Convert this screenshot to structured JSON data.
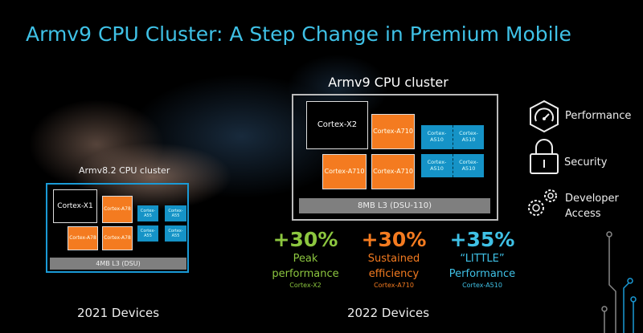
{
  "title": "Armv9 CPU Cluster: A Step Change in Premium Mobile",
  "armv9": {
    "label": "Armv9 CPU cluster",
    "big": "Cortex-X2",
    "mid": [
      "Cortex-A710",
      "Cortex-A710",
      "Cortex-A710"
    ],
    "little": [
      "Cortex-A510",
      "Cortex-A510",
      "Cortex-A510",
      "Cortex-A510"
    ],
    "cache": "8MB L3 (DSU-110)",
    "devices": "2022 Devices"
  },
  "armv82": {
    "label": "Armv8.2 CPU cluster",
    "big": "Cortex-X1",
    "mid": [
      "Cortex-A78",
      "Cortex-A78",
      "Cortex-A78"
    ],
    "little": [
      "Cortex-A55",
      "Cortex-A55",
      "Cortex-A55",
      "Cortex-A55"
    ],
    "cache": "4MB L3 (DSU)",
    "devices": "2021 Devices"
  },
  "stats": [
    {
      "value": "+30%",
      "line1": "Peak",
      "line2": "performance",
      "core": "Cortex-X2",
      "color": "#8cc63f"
    },
    {
      "value": "+30%",
      "line1": "Sustained",
      "line2": "efficiency",
      "core": "Cortex-A710",
      "color": "#f47b20"
    },
    {
      "value": "+35%",
      "line1": "“LITTLE”",
      "line2": "Performance",
      "core": "Cortex-A510",
      "color": "#3fc1e6"
    }
  ],
  "features": [
    {
      "icon": "speedometer-icon",
      "label": "Performance"
    },
    {
      "icon": "lock-icon",
      "label": "Security"
    },
    {
      "icon": "gears-icon",
      "line1": "Developer",
      "line2": "Access"
    }
  ]
}
